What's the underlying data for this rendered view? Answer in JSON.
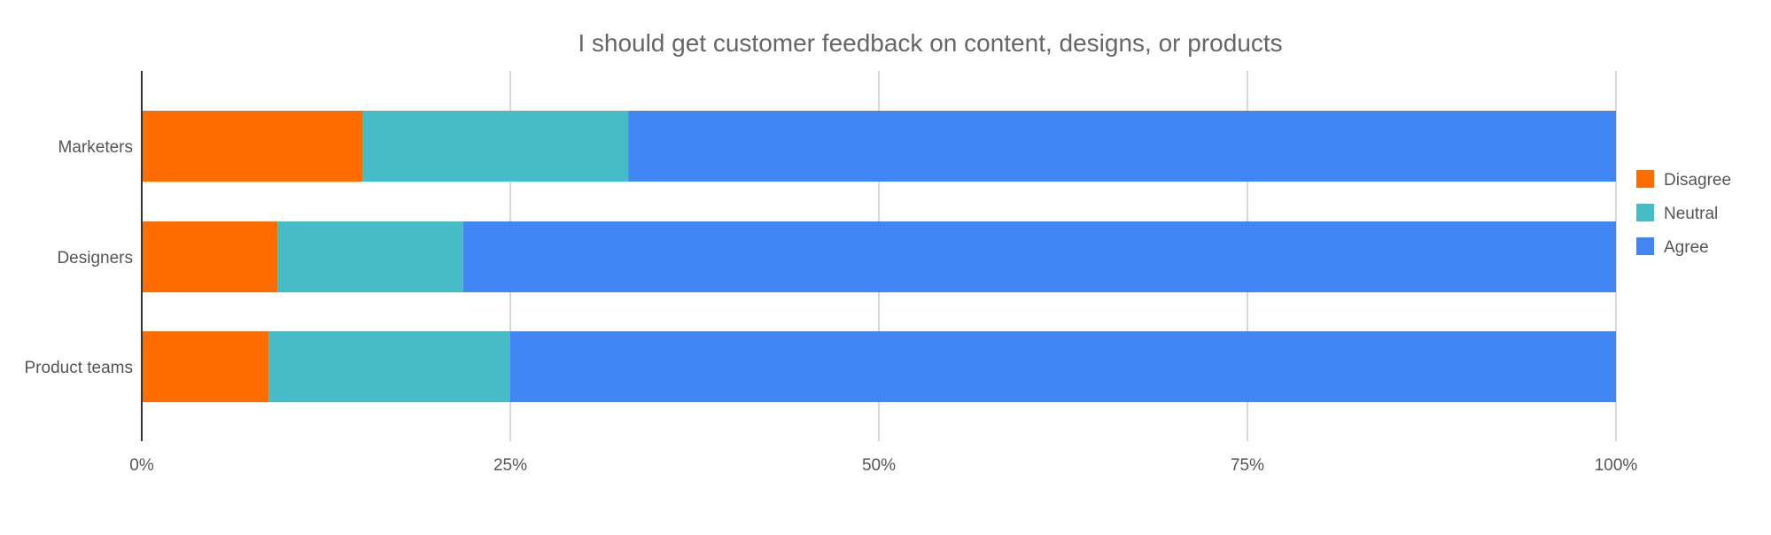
{
  "chart_data": {
    "type": "bar",
    "orientation": "horizontal",
    "stacked": "percent",
    "title": "I should get customer feedback on content, designs, or products",
    "categories": [
      "Marketers",
      "Designers",
      "Product teams"
    ],
    "series": [
      {
        "name": "Disagree",
        "color": "#ff6d00",
        "values": [
          15,
          9.2,
          8.6
        ]
      },
      {
        "name": "Neutral",
        "color": "#46bdc6",
        "values": [
          18,
          12.6,
          16.4
        ]
      },
      {
        "name": "Agree",
        "color": "#4285f4",
        "values": [
          67,
          78.2,
          75
        ]
      }
    ],
    "xlim": [
      0,
      100
    ],
    "xticks": [
      "0%",
      "25%",
      "50%",
      "75%",
      "100%"
    ],
    "xlabel": "",
    "ylabel": "",
    "grid": true,
    "legend_position": "right"
  }
}
